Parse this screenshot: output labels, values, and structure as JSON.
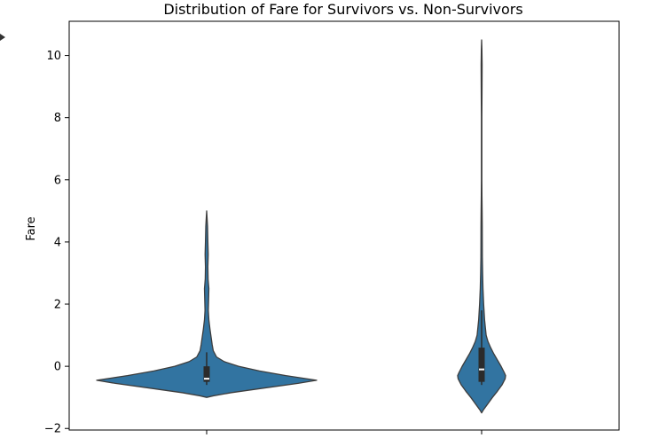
{
  "chart_data": {
    "type": "violin",
    "title": "Distribution of Fare for Survivors vs. Non-Survivors",
    "xlabel": "",
    "ylabel": "Fare",
    "ylim": [
      -2.05,
      11.1
    ],
    "yticks": [
      -2,
      0,
      2,
      4,
      6,
      8,
      10
    ],
    "ytick_labels": [
      "−2",
      "0",
      "2",
      "4",
      "6",
      "8",
      "10"
    ],
    "categories": [
      "",
      ""
    ],
    "grid": false,
    "legend": "none",
    "colors": {
      "fill": "#3274a1",
      "edge": "#3d3d3d",
      "box": "#2b2b2b",
      "median": "#ffffff"
    },
    "violins": [
      {
        "min": -1.0,
        "max": 5.0,
        "q1": -0.5,
        "median": -0.4,
        "q3": 0.0,
        "whisker_low": -0.6,
        "whisker_high": 0.45,
        "profile": [
          [
            -1.0,
            0.0
          ],
          [
            -0.95,
            0.06
          ],
          [
            -0.85,
            0.22
          ],
          [
            -0.7,
            0.52
          ],
          [
            -0.55,
            0.83
          ],
          [
            -0.45,
            1.0
          ],
          [
            -0.3,
            0.72
          ],
          [
            -0.15,
            0.48
          ],
          [
            0.0,
            0.29
          ],
          [
            0.15,
            0.16
          ],
          [
            0.3,
            0.09
          ],
          [
            0.5,
            0.06
          ],
          [
            0.7,
            0.05
          ],
          [
            0.95,
            0.04
          ],
          [
            1.2,
            0.03
          ],
          [
            1.5,
            0.02
          ],
          [
            1.8,
            0.015
          ],
          [
            2.2,
            0.018
          ],
          [
            2.5,
            0.02
          ],
          [
            2.8,
            0.013
          ],
          [
            3.2,
            0.011
          ],
          [
            3.6,
            0.014
          ],
          [
            4.0,
            0.011
          ],
          [
            4.5,
            0.008
          ],
          [
            5.0,
            0.0
          ]
        ]
      },
      {
        "min": -1.5,
        "max": 10.5,
        "q1": -0.5,
        "median": -0.1,
        "q3": 0.6,
        "whisker_low": -0.6,
        "whisker_high": 1.8,
        "profile": [
          [
            -1.5,
            0.0
          ],
          [
            -1.4,
            0.04
          ],
          [
            -1.2,
            0.14
          ],
          [
            -1.0,
            0.24
          ],
          [
            -0.8,
            0.35
          ],
          [
            -0.6,
            0.45
          ],
          [
            -0.4,
            0.52
          ],
          [
            -0.3,
            0.53
          ],
          [
            -0.2,
            0.5
          ],
          [
            0.0,
            0.43
          ],
          [
            0.2,
            0.35
          ],
          [
            0.4,
            0.27
          ],
          [
            0.6,
            0.2
          ],
          [
            0.8,
            0.14
          ],
          [
            1.0,
            0.1
          ],
          [
            1.5,
            0.065
          ],
          [
            2.0,
            0.045
          ],
          [
            2.5,
            0.03
          ],
          [
            3.0,
            0.022
          ],
          [
            3.5,
            0.016
          ],
          [
            4.0,
            0.015
          ],
          [
            4.5,
            0.014
          ],
          [
            5.0,
            0.011
          ],
          [
            5.5,
            0.007
          ],
          [
            6.0,
            0.005
          ],
          [
            7.0,
            0.005
          ],
          [
            8.0,
            0.005
          ],
          [
            9.0,
            0.009
          ],
          [
            9.7,
            0.011
          ],
          [
            10.2,
            0.006
          ],
          [
            10.5,
            0.0
          ]
        ]
      }
    ]
  }
}
